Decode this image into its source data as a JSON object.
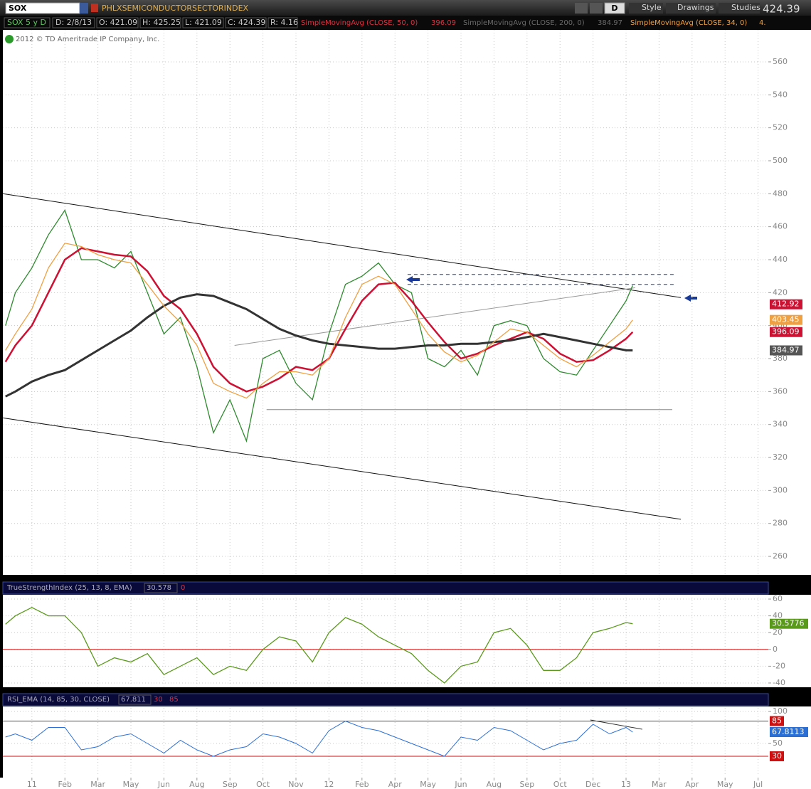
{
  "toolbar": {
    "symbol": "SOX",
    "description": "PHLXSEMICONDUCTORSECTORINDEX",
    "aggregation_button": "D",
    "buttons": [
      "Style",
      "Drawings",
      "Studies"
    ],
    "last_price": 424.39
  },
  "info_bar": {
    "chart_label": "SOX 5 y D",
    "date": "D: 2/8/13",
    "open": "O: 421.09",
    "high": "H: 425.25",
    "low": "L: 421.09",
    "close": "C: 424.39",
    "range": "R: 4.16"
  },
  "copyright": "2012 © TD Ameritrade IP Company, Inc.",
  "x_axis": {
    "xlim": [
      -0.88,
      22.31
    ],
    "xticks": [
      {
        "value": 0,
        "label": "11"
      },
      {
        "value": 1,
        "label": "Feb"
      },
      {
        "value": 2,
        "label": "Mar"
      },
      {
        "value": 3,
        "label": "May"
      },
      {
        "value": 4,
        "label": "Jun"
      },
      {
        "value": 5,
        "label": "Aug"
      },
      {
        "value": 6,
        "label": "Sep"
      },
      {
        "value": 7,
        "label": "Oct"
      },
      {
        "value": 8,
        "label": "Nov"
      },
      {
        "value": 9,
        "label": "12"
      },
      {
        "value": 10,
        "label": "Feb"
      },
      {
        "value": 11,
        "label": "Apr"
      },
      {
        "value": 12,
        "label": "May"
      },
      {
        "value": 13,
        "label": "Jun"
      },
      {
        "value": 14,
        "label": "Aug"
      },
      {
        "value": 15,
        "label": "Sep"
      },
      {
        "value": 16,
        "label": "Oct"
      },
      {
        "value": 17,
        "label": "Dec"
      },
      {
        "value": 18,
        "label": "13"
      },
      {
        "value": 19,
        "label": "Mar"
      },
      {
        "value": 20,
        "label": "Apr"
      },
      {
        "value": 21,
        "label": "May"
      },
      {
        "value": 22,
        "label": "Jul"
      }
    ]
  },
  "chart_data": [
    {
      "type": "line",
      "x": [
        -0.8,
        -0.5,
        0,
        0.5,
        1,
        1.5,
        2,
        2.5,
        3,
        3.5,
        4,
        4.5,
        5,
        5.5,
        6,
        6.5,
        7,
        7.5,
        8,
        8.5,
        9,
        9.5,
        10,
        10.5,
        11,
        11.5,
        12,
        12.5,
        13,
        13.5,
        14,
        14.5,
        15,
        15.5,
        16,
        16.5,
        17,
        17.5,
        18,
        18.2
      ],
      "close": [
        400,
        420,
        435,
        455,
        470,
        440,
        440,
        435,
        445,
        420,
        395,
        405,
        375,
        335,
        355,
        330,
        380,
        385,
        365,
        355,
        395,
        425,
        430,
        438,
        425,
        420,
        380,
        375,
        385,
        370,
        400,
        403,
        400,
        380,
        372,
        370,
        385,
        400,
        415,
        424.39
      ],
      "close_color": "#2e8b2e",
      "series": [
        {
          "name": "SimpleMovingAvg (CLOSE, 50, 0)",
          "color": "#cc1133",
          "legend_value": 396.09,
          "values": [
            378,
            388,
            400,
            420,
            440,
            447,
            445,
            443,
            442,
            433,
            418,
            410,
            395,
            375,
            365,
            360,
            363,
            368,
            375,
            373,
            380,
            398,
            415,
            425,
            426,
            415,
            402,
            390,
            380,
            383,
            388,
            392,
            396,
            392,
            383,
            378,
            379,
            385,
            392,
            396.09
          ]
        },
        {
          "name": "SimpleMovingAvg (CLOSE, 200, 0)",
          "color": "#333333",
          "legend_value": 384.97,
          "values": [
            357,
            360,
            366,
            370,
            373,
            379,
            385,
            391,
            397,
            405,
            412,
            417,
            419,
            418,
            414,
            410,
            404,
            398,
            394,
            391,
            389,
            388,
            387,
            386,
            386,
            387,
            388,
            388,
            389,
            389,
            390,
            391,
            393,
            395,
            393,
            391,
            389,
            387,
            385,
            384.97
          ]
        },
        {
          "name": "SimpleMovingAvg (CLOSE, 34, 0)",
          "color": "#f0a040",
          "legend_text": "4.",
          "values": [
            385,
            395,
            410,
            435,
            450,
            448,
            443,
            440,
            438,
            425,
            412,
            402,
            388,
            365,
            360,
            356,
            365,
            372,
            372,
            370,
            380,
            405,
            425,
            430,
            425,
            410,
            395,
            384,
            378,
            382,
            390,
            398,
            396,
            388,
            380,
            375,
            382,
            390,
            398,
            403.45
          ]
        }
      ],
      "trendlines": [
        {
          "x": [
            -0.88,
            19.66
          ],
          "y": [
            480,
            417
          ],
          "color": "#111111",
          "dashed": false
        },
        {
          "x": [
            -0.88,
            19.66
          ],
          "y": [
            344,
            282.5
          ],
          "color": "#111111",
          "dashed": false
        },
        {
          "x": [
            7.11,
            19.4
          ],
          "y": [
            349,
            349
          ],
          "color": "#888888",
          "dashed": false
        },
        {
          "x": [
            6.14,
            18.28
          ],
          "y": [
            388,
            423
          ],
          "color": "#999999",
          "dashed": false
        },
        {
          "x": [
            11.38,
            19.5
          ],
          "y": [
            431,
            431
          ],
          "color": "#1a3a9a",
          "dashed": true
        },
        {
          "x": [
            11.38,
            19.5
          ],
          "y": [
            425,
            425
          ],
          "color": "#1a3a9a",
          "dashed": true
        }
      ],
      "axis_markers": [
        {
          "value": 412.92,
          "color": "#cc1133"
        },
        {
          "value": 403.45,
          "color": "#f0a040"
        },
        {
          "value": 396.09,
          "color": "#cc1133"
        },
        {
          "value": 384.97,
          "color": "#555555"
        }
      ],
      "ylim": [
        248.8,
        579.4
      ],
      "yticks": [
        260,
        280,
        300,
        320,
        340,
        360,
        380,
        400,
        420,
        440,
        460,
        480,
        500,
        520,
        540,
        560
      ],
      "grid": true
    },
    {
      "type": "line",
      "x": [
        -0.8,
        -0.5,
        0,
        0.5,
        1,
        1.5,
        2,
        2.5,
        3,
        3.5,
        4,
        4.5,
        5,
        5.5,
        6,
        6.5,
        7,
        7.5,
        8,
        8.5,
        9,
        9.5,
        10,
        10.5,
        11,
        11.5,
        12,
        12.5,
        13,
        13.5,
        14,
        14.5,
        15,
        15.5,
        16,
        16.5,
        17,
        17.5,
        18,
        18.2
      ],
      "series": [
        {
          "name": "TrueStrengthIndex (25, 13, 8, EMA)",
          "color": "#5a9a1a",
          "legend_value": 30.578,
          "last_label": 30.5776,
          "values": [
            30,
            40,
            50,
            40,
            40,
            20,
            -20,
            -10,
            -15,
            -5,
            -30,
            -20,
            -10,
            -30,
            -20,
            -25,
            0,
            15,
            10,
            -15,
            20,
            38,
            30,
            15,
            5,
            -5,
            -25,
            -40,
            -20,
            -15,
            20,
            25,
            5,
            -25,
            -25,
            -10,
            20,
            25,
            32,
            30.578
          ]
        }
      ],
      "levels": [
        {
          "value": 0,
          "color": "#d01010"
        }
      ],
      "ylim": [
        -45.1,
        65.1
      ],
      "yticks": [
        -40,
        -20,
        0,
        20,
        40,
        60
      ],
      "grid": true
    },
    {
      "type": "line",
      "x": [
        -0.8,
        -0.5,
        0,
        0.5,
        1,
        1.5,
        2,
        2.5,
        3,
        3.5,
        4,
        4.5,
        5,
        5.5,
        6,
        6.5,
        7,
        7.5,
        8,
        8.5,
        9,
        9.5,
        10,
        10.5,
        11,
        11.5,
        12,
        12.5,
        13,
        13.5,
        14,
        14.5,
        15,
        15.5,
        16,
        16.5,
        17,
        17.5,
        18,
        18.2
      ],
      "series": [
        {
          "name": "RSI_EMA (14, 85, 30, CLOSE)",
          "color": "#2a6fd6",
          "legend_value": 67.811,
          "last_label": 67.8113,
          "values": [
            60,
            65,
            55,
            75,
            75,
            40,
            45,
            60,
            65,
            50,
            35,
            55,
            40,
            30,
            40,
            45,
            65,
            60,
            50,
            35,
            70,
            85,
            75,
            70,
            60,
            50,
            40,
            30,
            60,
            55,
            75,
            70,
            55,
            40,
            50,
            55,
            80,
            65,
            75,
            67.811
          ]
        }
      ],
      "levels": [
        {
          "value": 30,
          "color": "#d01010"
        },
        {
          "value": 85,
          "color": "#d01010"
        }
      ],
      "trendlines": [
        {
          "x": [
            16.92,
            18.49
          ],
          "y": [
            86.7,
            72.2
          ],
          "color": "#333333",
          "dashed": false
        }
      ],
      "ylim": [
        0,
        105.6
      ],
      "yticks": [
        50,
        100
      ],
      "grid": true
    }
  ]
}
